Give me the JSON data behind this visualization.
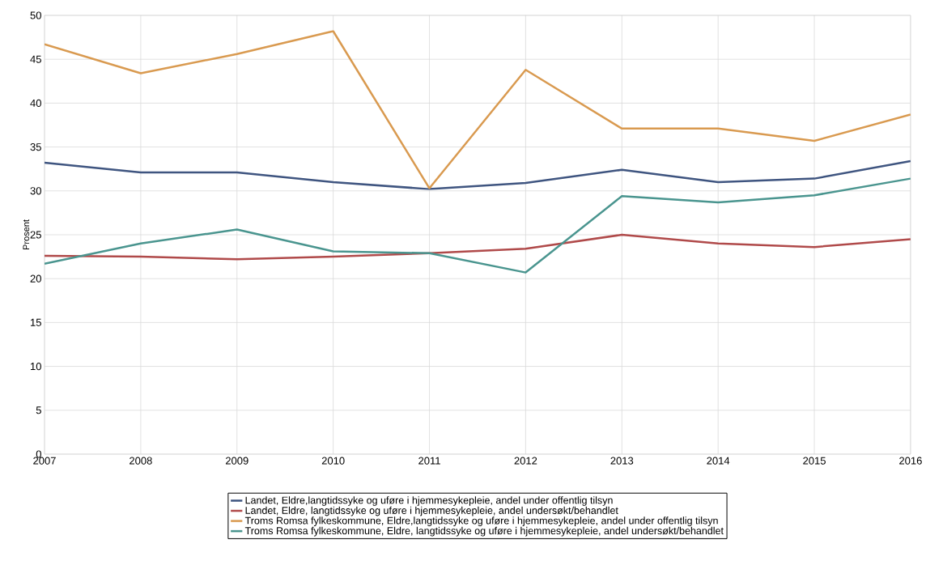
{
  "chart_data": {
    "type": "line",
    "ylabel": "Prosent",
    "x": [
      2007,
      2008,
      2009,
      2010,
      2011,
      2012,
      2013,
      2014,
      2015,
      2016
    ],
    "xlim": [
      2007,
      2016
    ],
    "xticks": [
      2007,
      2008,
      2009,
      2010,
      2011,
      2012,
      2013,
      2014,
      2015,
      2016
    ],
    "ylim": [
      0,
      50
    ],
    "yticks": [
      0,
      5,
      10,
      15,
      20,
      25,
      30,
      35,
      40,
      45,
      50
    ],
    "grid": true,
    "legend": "bottom",
    "marker": "none",
    "line_style": "solid",
    "series": [
      {
        "name": "Landet, Eldre,langtidssyke og uføre i hjemmesykepleie, andel under offentlig tilsyn",
        "color": "#3f5580",
        "values": [
          33.2,
          32.1,
          32.1,
          31.0,
          30.2,
          30.9,
          32.4,
          31.0,
          31.4,
          33.4
        ]
      },
      {
        "name": "Landet, Eldre, langtidssyke og uføre i hjemmesykepleie, andel undersøkt/behandlet",
        "color": "#b04a4a",
        "values": [
          22.6,
          22.5,
          22.2,
          22.5,
          22.9,
          23.4,
          25.0,
          24.0,
          23.6,
          24.5
        ]
      },
      {
        "name": "Troms Romsa fylkeskommune, Eldre,langtidssyke og uføre i hjemmesykepleie, andel under offentlig tilsyn",
        "color": "#d99a50",
        "values": [
          46.7,
          43.4,
          45.6,
          48.2,
          30.3,
          43.8,
          37.1,
          37.1,
          35.7,
          38.7
        ]
      },
      {
        "name": "Troms Romsa fylkeskommune, Eldre, langtidssyke og uføre i hjemmesykepleie, andel undersøkt/behandlet",
        "color": "#4a958f",
        "values": [
          21.7,
          24.0,
          25.6,
          23.1,
          22.9,
          20.7,
          29.4,
          28.7,
          29.5,
          31.4
        ]
      }
    ]
  }
}
